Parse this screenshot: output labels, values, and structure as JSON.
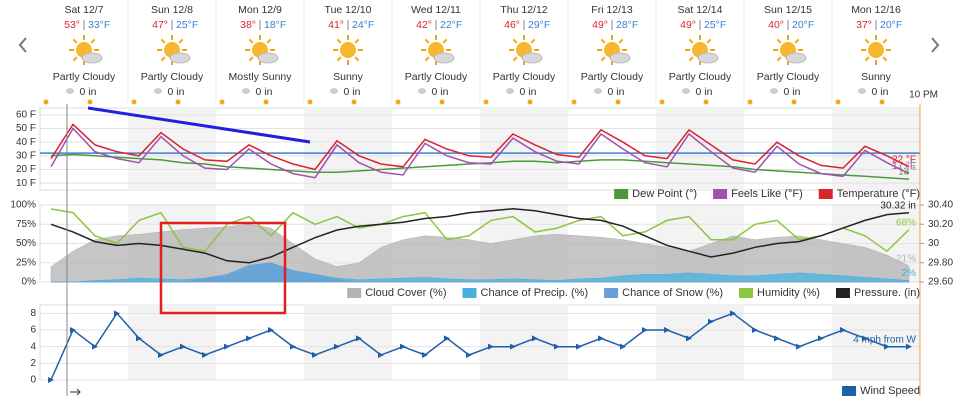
{
  "forecast": {
    "time_label": "10 PM",
    "days": [
      {
        "date": "Sat 12/7",
        "high": "53°",
        "low": "33°F",
        "condition": "Partly Cloudy",
        "precip": "0 in"
      },
      {
        "date": "Sun 12/8",
        "high": "47°",
        "low": "25°F",
        "condition": "Partly Cloudy",
        "precip": "0 in"
      },
      {
        "date": "Mon 12/9",
        "high": "38°",
        "low": "18°F",
        "condition": "Mostly Sunny",
        "precip": "0 in"
      },
      {
        "date": "Tue 12/10",
        "high": "41°",
        "low": "24°F",
        "condition": "Sunny",
        "precip": "0 in"
      },
      {
        "date": "Wed 12/11",
        "high": "42°",
        "low": "22°F",
        "condition": "Partly Cloudy",
        "precip": "0 in"
      },
      {
        "date": "Thu 12/12",
        "high": "46°",
        "low": "29°F",
        "condition": "Partly Cloudy",
        "precip": "0 in"
      },
      {
        "date": "Fri 12/13",
        "high": "49°",
        "low": "28°F",
        "condition": "Partly Cloudy",
        "precip": "0 in"
      },
      {
        "date": "Sat 12/14",
        "high": "49°",
        "low": "25°F",
        "condition": "Partly Cloudy",
        "precip": "0 in"
      },
      {
        "date": "Sun 12/15",
        "high": "40°",
        "low": "20°F",
        "condition": "Partly Cloudy",
        "precip": "0 in"
      },
      {
        "date": "Mon 12/16",
        "high": "37°",
        "low": "20°F",
        "condition": "Sunny",
        "precip": "0 in"
      }
    ]
  },
  "chart_data": [
    {
      "type": "line",
      "grid": true,
      "freezing_line": 32,
      "freezing_color": "#3b7fd0",
      "ylim": [
        5,
        65
      ],
      "yticks": [
        {
          "value": 10,
          "label": "10 F"
        },
        {
          "value": 20,
          "label": "20 F"
        },
        {
          "value": 30,
          "label": "30 F"
        },
        {
          "value": 40,
          "label": "40 F"
        },
        {
          "value": 50,
          "label": "50 F"
        },
        {
          "value": 60,
          "label": "60 F"
        }
      ],
      "series": [
        {
          "name": "Dew Point (°)",
          "color": "#4a9a3b",
          "end_label": "13 °",
          "values": [
            30,
            31,
            30,
            29,
            28,
            27,
            25,
            24,
            22,
            21,
            20,
            19,
            18,
            18,
            19,
            20,
            21,
            22,
            23,
            24,
            25,
            26,
            26,
            25,
            26,
            27,
            27,
            26,
            25,
            24,
            23,
            22,
            20,
            19,
            18,
            17,
            16,
            15,
            14,
            13
          ]
        },
        {
          "name": "Feels Like (°F)",
          "color": "#a24fb0",
          "end_label": "17 °F",
          "values": [
            22,
            50,
            33,
            28,
            25,
            44,
            30,
            21,
            20,
            35,
            24,
            17,
            14,
            38,
            25,
            18,
            16,
            39,
            30,
            25,
            24,
            43,
            33,
            26,
            24,
            46,
            35,
            25,
            22,
            46,
            33,
            21,
            18,
            37,
            24,
            17,
            15,
            34,
            25,
            17
          ]
        },
        {
          "name": "Temperature (°F)",
          "color": "#d9232d",
          "end_label": "22 °F",
          "values": [
            28,
            53,
            38,
            33,
            30,
            47,
            35,
            27,
            26,
            38,
            30,
            24,
            20,
            41,
            30,
            24,
            22,
            42,
            35,
            30,
            29,
            46,
            38,
            31,
            29,
            49,
            40,
            30,
            28,
            49,
            38,
            27,
            24,
            40,
            30,
            23,
            21,
            37,
            30,
            22
          ]
        }
      ]
    },
    {
      "type": "line",
      "grid": true,
      "ylim": [
        0,
        100
      ],
      "yticks": [
        {
          "value": 0,
          "label": "0%"
        },
        {
          "value": 25,
          "label": "25%"
        },
        {
          "value": 50,
          "label": "50%"
        },
        {
          "value": 75,
          "label": "75%"
        },
        {
          "value": 100,
          "label": "100%"
        }
      ],
      "y2lim": [
        29.6,
        30.4
      ],
      "y2ticks": [
        {
          "value": 29.6,
          "label": "29.60"
        },
        {
          "value": 29.8,
          "label": "29.80"
        },
        30,
        {
          "value": 30.2,
          "label": "30.20"
        },
        {
          "value": 30.4,
          "label": "30.40"
        }
      ],
      "series": [
        {
          "name": "Cloud Cover (%)",
          "color": "#b3b3b3",
          "fill": true,
          "end_label": "21%",
          "values": [
            20,
            40,
            55,
            60,
            62,
            65,
            68,
            70,
            72,
            75,
            70,
            50,
            30,
            20,
            25,
            45,
            55,
            60,
            58,
            55,
            50,
            55,
            60,
            62,
            60,
            58,
            55,
            50,
            45,
            40,
            50,
            60,
            55,
            58,
            60,
            55,
            50,
            45,
            35,
            21
          ]
        },
        {
          "name": "Chance of Precip. (%)",
          "color": "#45b1dd",
          "fill": true,
          "end_label": "2%",
          "values": [
            0,
            0,
            2,
            3,
            5,
            4,
            3,
            5,
            8,
            20,
            25,
            15,
            10,
            5,
            3,
            4,
            5,
            6,
            4,
            3,
            3,
            4,
            3,
            2,
            4,
            5,
            8,
            10,
            10,
            12,
            10,
            8,
            8,
            10,
            12,
            10,
            8,
            6,
            4,
            2
          ]
        },
        {
          "name": "Chance of Snow (%)",
          "color": "#6a9fd6",
          "fill": true,
          "values": [
            0,
            0,
            0,
            0,
            0,
            0,
            0,
            5,
            10,
            22,
            25,
            15,
            10,
            3,
            0,
            0,
            0,
            0,
            0,
            0,
            0,
            0,
            0,
            0,
            0,
            0,
            0,
            0,
            0,
            0,
            0,
            0,
            0,
            0,
            0,
            0,
            0,
            0,
            0,
            0
          ]
        },
        {
          "name": "Humidity (%)",
          "color": "#8cc63f",
          "end_label": "68%",
          "values": [
            95,
            90,
            60,
            50,
            80,
            90,
            45,
            40,
            75,
            85,
            60,
            90,
            75,
            85,
            70,
            75,
            85,
            90,
            55,
            60,
            80,
            85,
            65,
            70,
            80,
            85,
            60,
            65,
            80,
            85,
            55,
            55,
            75,
            80,
            55,
            60,
            70,
            60,
            40,
            68
          ]
        },
        {
          "name": "Pressure. (in)",
          "color": "#222222",
          "axis": "y2",
          "end_label": "30.32 in",
          "values": [
            30.2,
            30.12,
            30.02,
            29.98,
            30,
            29.98,
            29.94,
            29.9,
            29.82,
            29.8,
            29.86,
            29.96,
            30.06,
            30.14,
            30.18,
            30.2,
            30.22,
            30.26,
            30.28,
            30.32,
            30.34,
            30.36,
            30.34,
            30.3,
            30.26,
            30.24,
            30.18,
            30.08,
            29.98,
            29.92,
            29.86,
            29.9,
            29.96,
            30,
            30.02,
            30.08,
            30.16,
            30.24,
            30.3,
            30.32
          ]
        }
      ]
    },
    {
      "type": "line",
      "grid": true,
      "markers": true,
      "ylim": [
        0,
        9
      ],
      "yticks": [
        0,
        2,
        4,
        6,
        8
      ],
      "series": [
        {
          "name": "Wind Speed",
          "color": "#1f5fa8",
          "end_label": "4 mph from W",
          "values": [
            0,
            6,
            4,
            8,
            5,
            3,
            4,
            3,
            4,
            5,
            6,
            4,
            3,
            4,
            5,
            3,
            4,
            3,
            5,
            3,
            4,
            4,
            5,
            4,
            4,
            5,
            4,
            6,
            6,
            5,
            7,
            8,
            6,
            5,
            4,
            5,
            6,
            5,
            4,
            4
          ]
        }
      ]
    }
  ]
}
